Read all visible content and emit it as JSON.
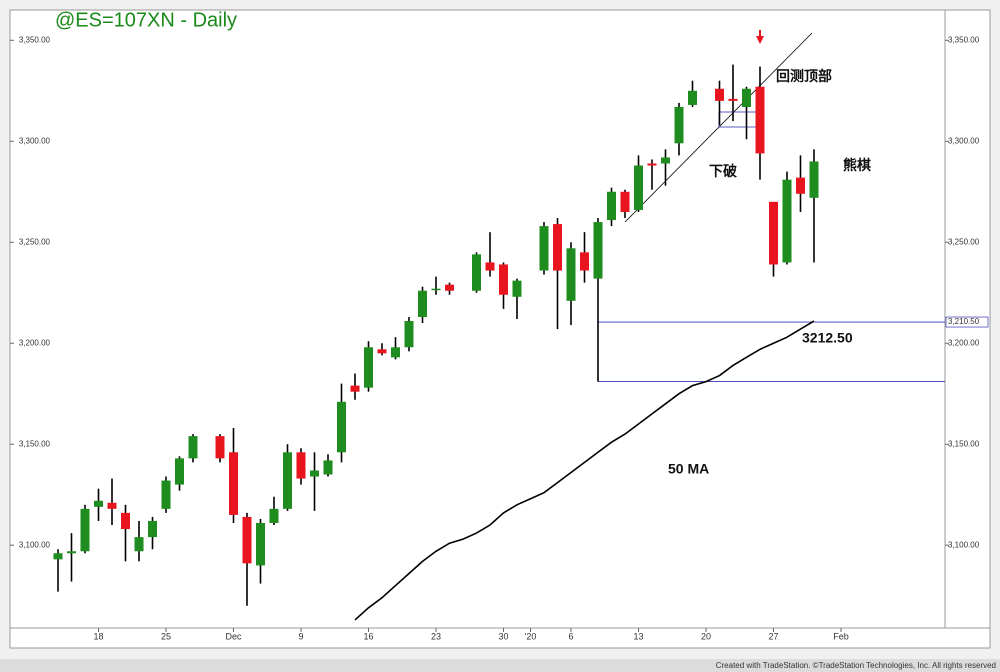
{
  "chart_data": {
    "type": "candlestick",
    "title": "@ES=107XN - Daily",
    "footer": "Created with TradeStation. ©TradeStation Technologies, Inc. All rights reserved",
    "categories": [
      null,
      null,
      null,
      "18",
      null,
      null,
      null,
      null,
      "25",
      null,
      null,
      null,
      null,
      "Dec",
      null,
      null,
      null,
      null,
      "9",
      null,
      null,
      null,
      null,
      "16",
      null,
      null,
      null,
      null,
      "23",
      null,
      null,
      null,
      null,
      "30",
      null,
      "'20",
      null,
      null,
      "6",
      null,
      null,
      null,
      null,
      "13",
      null,
      null,
      null,
      null,
      "20",
      null,
      null,
      null,
      null,
      "27",
      null,
      null,
      null,
      null,
      "Feb"
    ],
    "open": [
      3093,
      3096,
      3097,
      3119,
      3121,
      3116,
      3097,
      3104,
      3118,
      3130,
      3143,
      null,
      3154,
      3146,
      3114,
      3090,
      3111,
      3118,
      3146,
      3134,
      3135,
      3146,
      3179,
      3178,
      3197,
      3193,
      3198,
      3213,
      3227,
      3229,
      null,
      3226,
      3240,
      3239,
      3223,
      null,
      3236,
      3259,
      3221,
      3245,
      3232,
      3261,
      3275,
      3266,
      3289,
      3289,
      3299,
      3318,
      null,
      3326,
      3321,
      3317,
      3327,
      3270,
      3240,
      3282,
      3272,
      null,
      null
    ],
    "high": [
      3098,
      3106,
      3120,
      3128,
      3133,
      3120,
      3112,
      3114,
      3134,
      3144,
      3155,
      null,
      3155,
      3158,
      3116,
      3113,
      3124,
      3150,
      3148,
      3146,
      3145,
      3180,
      3185,
      3201,
      3200,
      3203,
      3213,
      3228,
      3233,
      3230,
      null,
      3245,
      3255,
      3240,
      3232,
      null,
      3260,
      3262,
      3250,
      3255,
      3262,
      3277,
      3276,
      3293,
      3291,
      3296,
      3319,
      3330,
      null,
      3330,
      3338,
      3327,
      3337,
      3270,
      3285,
      3293,
      3296,
      null,
      null
    ],
    "low": [
      3077,
      3082,
      3096,
      3112,
      3110,
      3092,
      3092,
      3098,
      3116,
      3127,
      3141,
      null,
      3141,
      3111,
      3070,
      3081,
      3110,
      3117,
      3130,
      3117,
      3134,
      3141,
      3172,
      3176,
      3194,
      3192,
      3196,
      3210,
      3224,
      3224,
      null,
      3225,
      3233,
      3217,
      3212,
      null,
      3234,
      3207,
      3209,
      3230,
      3181,
      3258,
      3262,
      3265,
      3276,
      3278,
      3293,
      3317,
      null,
      3308,
      3310,
      3301,
      3281,
      3233,
      3239,
      3265,
      3240,
      null,
      null
    ],
    "close": [
      3096,
      3097,
      3118,
      3122,
      3118,
      3108,
      3104,
      3112,
      3132,
      3143,
      3154,
      null,
      3143,
      3115,
      3091,
      3111,
      3118,
      3146,
      3133,
      3137,
      3142,
      3171,
      3176,
      3198,
      3195,
      3198,
      3211,
      3226,
      3227,
      3226,
      null,
      3244,
      3236,
      3224,
      3231,
      null,
      3258,
      3236,
      3247,
      3236,
      3260,
      3275,
      3265,
      3288,
      3288,
      3292,
      3317,
      3325,
      null,
      3320,
      3320,
      3326,
      3294,
      3239,
      3281,
      3274,
      3290,
      null,
      null
    ],
    "up_color": "#1e8c1e",
    "down_color": "#e8141e",
    "ma": {
      "name": "50 MA",
      "color": "#000000",
      "values": [
        null,
        null,
        null,
        null,
        null,
        null,
        null,
        null,
        null,
        null,
        null,
        null,
        null,
        null,
        null,
        null,
        null,
        null,
        null,
        null,
        null,
        null,
        3063,
        3069,
        3074,
        3080,
        3086,
        3092,
        3097,
        3101,
        3103,
        3106,
        3110,
        3116,
        3120,
        3123,
        3126,
        3131,
        3136,
        3141,
        3146,
        3151,
        3155,
        3160,
        3165,
        3170,
        3175,
        3179,
        3181,
        3184,
        3189,
        3193,
        3197,
        3200,
        3203,
        3207,
        3211,
        null,
        null
      ]
    },
    "levels": [
      {
        "value": 3210.5,
        "label": "3,210.50"
      },
      3181
    ],
    "level_color": "#3434b4",
    "ylim": [
      3059,
      3365
    ],
    "yticks": [
      {
        "value": 3100,
        "label": "3,100.00"
      },
      {
        "value": 3150,
        "label": "3,150.00"
      },
      {
        "value": 3200,
        "label": "3,200.00"
      },
      {
        "value": 3250,
        "label": "3,250.00"
      },
      {
        "value": 3300,
        "label": "3,300.00"
      },
      {
        "value": 3350,
        "label": "3,350.00"
      }
    ],
    "annotations": [
      "回测顶部",
      "下破",
      "熊棋",
      "3212.50"
    ]
  }
}
